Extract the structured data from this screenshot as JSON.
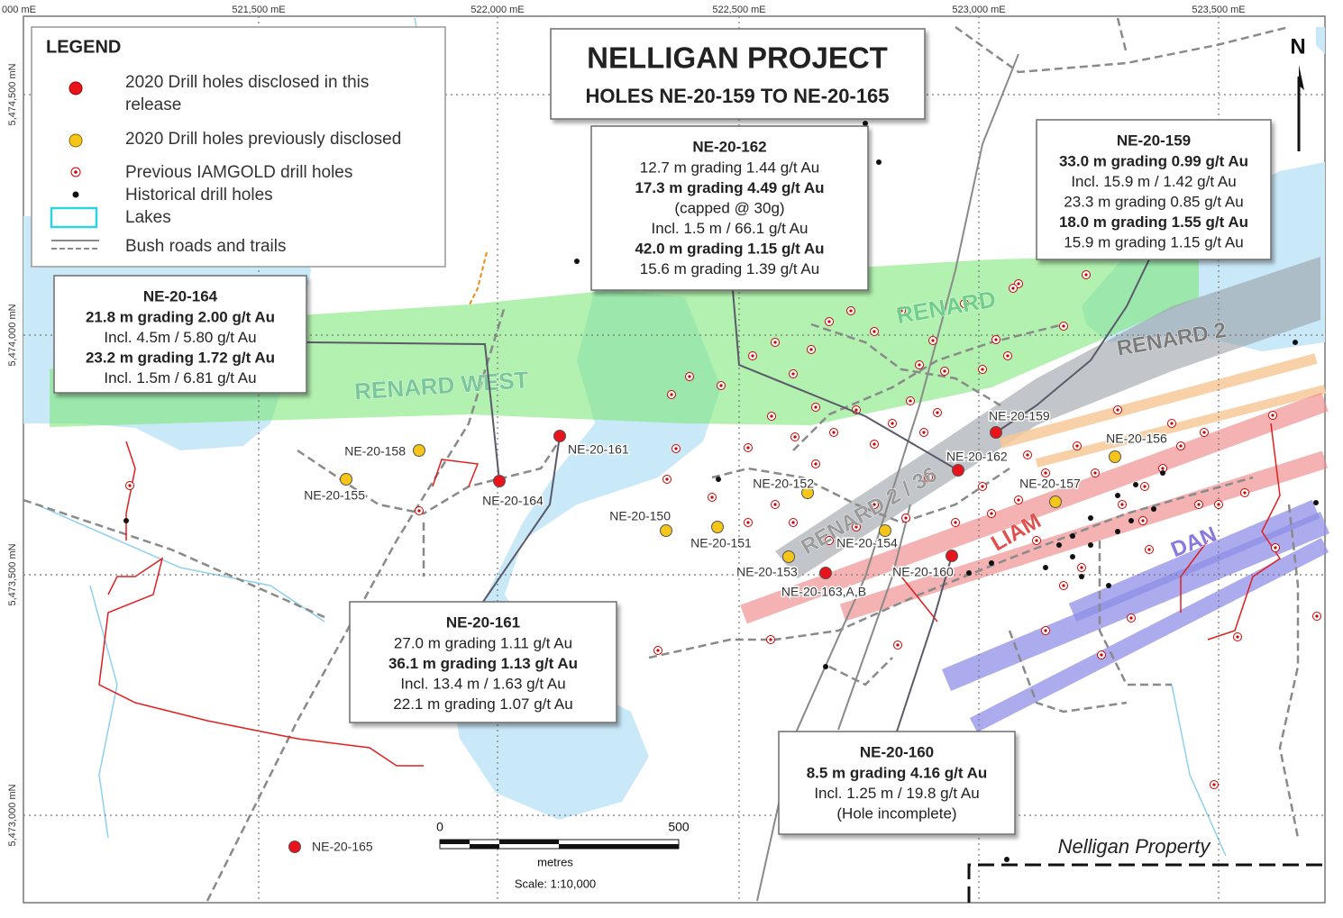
{
  "title": "NELLIGAN PROJECT",
  "subtitle": "HOLES NE-20-159 TO NE-20-165",
  "north": "N",
  "grid_labels": {
    "eastings": [
      "000 mE",
      "521,500 mE",
      "522,000 mE",
      "522,500 mE",
      "523,000 mE",
      "523,500 mE"
    ],
    "northings": [
      "5,474,500 mN",
      "5,474,000 mN",
      "5,473,500 mN",
      "5,473,000 mN"
    ]
  },
  "legend": {
    "title": "LEGEND",
    "items": [
      {
        "lines": [
          "2020 Drill holes disclosed in this",
          "release"
        ],
        "color": "#e8131b"
      },
      {
        "lines": [
          "2020 Drill holes previously disclosed"
        ],
        "color": "#f5c518"
      },
      {
        "lines": [
          "Previous IAMGOLD drill holes"
        ]
      },
      {
        "lines": [
          "Historical drill holes"
        ]
      },
      {
        "lines": [
          "Lakes"
        ]
      },
      {
        "lines": [
          "Bush roads and trails"
        ]
      }
    ]
  },
  "callouts": [
    {
      "title": "NE-20-162",
      "lines": [
        {
          "text": "12.7 m grading 1.44 g/t Au",
          "bold": false
        },
        {
          "text": "17.3 m grading 4.49 g/t Au",
          "bold": true
        },
        {
          "text": "(capped @ 30g)",
          "bold": false
        },
        {
          "text": "Incl. 1.5 m / 66.1 g/t Au",
          "bold": false
        },
        {
          "text": "42.0 m grading 1.15 g/t Au",
          "bold": true
        },
        {
          "text": "15.6 m grading 1.39 g/t Au",
          "bold": false
        }
      ]
    },
    {
      "title": "NE-20-159",
      "lines": [
        {
          "text": "33.0 m grading 0.99 g/t Au",
          "bold": true
        },
        {
          "text": "Incl. 15.9 m / 1.42 g/t Au",
          "bold": false
        },
        {
          "text": "23.3 m grading 0.85 g/t Au",
          "bold": false
        },
        {
          "text": "18.0 m grading 1.55 g/t Au",
          "bold": true
        },
        {
          "text": "15.9 m grading 1.15 g/t Au",
          "bold": false
        }
      ]
    },
    {
      "title": "NE-20-164",
      "lines": [
        {
          "text": "21.8 m grading 2.00 g/t Au",
          "bold": true
        },
        {
          "text": "Incl. 4.5m / 5.80 g/t Au",
          "bold": false
        },
        {
          "text": "23.2 m grading 1.72 g/t Au",
          "bold": true
        },
        {
          "text": "Incl. 1.5m / 6.81 g/t Au",
          "bold": false
        }
      ]
    },
    {
      "title": "NE-20-161",
      "lines": [
        {
          "text": "27.0 m grading 1.11 g/t Au",
          "bold": false
        },
        {
          "text": "36.1 m grading 1.13 g/t Au",
          "bold": true
        },
        {
          "text": "Incl. 13.4 m / 1.63 g/t Au",
          "bold": false
        },
        {
          "text": "22.1 m grading 1.07 g/t Au",
          "bold": false
        }
      ]
    },
    {
      "title": "NE-20-160",
      "lines": [
        {
          "text": "8.5 m grading 4.16 g/t Au",
          "bold": true
        },
        {
          "text": "Incl. 1.25 m / 19.8 g/t Au",
          "bold": false
        },
        {
          "text": "(Hole incomplete)",
          "bold": false
        }
      ]
    }
  ],
  "zones": [
    "RENARD WEST",
    "RENARD",
    "RENARD 2",
    "RENARD 2 / 36",
    "LIAM",
    "DAN"
  ],
  "holes": [
    {
      "label": "NE-20-158",
      "color": "#f5c518"
    },
    {
      "label": "NE-20-155",
      "color": "#f5c518"
    },
    {
      "label": "NE-20-164",
      "color": "#e8131b"
    },
    {
      "label": "NE-20-161",
      "color": "#e8131b"
    },
    {
      "label": "NE-20-150",
      "color": "#f5c518"
    },
    {
      "label": "NE-20-151",
      "color": "#f5c518"
    },
    {
      "label": "NE-20-152",
      "color": "#f5c518"
    },
    {
      "label": "NE-20-153",
      "color": "#f5c518"
    },
    {
      "label": "NE-20-163,A,B",
      "color": "#e8131b"
    },
    {
      "label": "NE-20-154",
      "color": "#f5c518"
    },
    {
      "label": "NE-20-160",
      "color": "#e8131b"
    },
    {
      "label": "NE-20-162",
      "color": "#e8131b"
    },
    {
      "label": "NE-20-159",
      "color": "#e8131b"
    },
    {
      "label": "NE-20-157",
      "color": "#f5c518"
    },
    {
      "label": "NE-20-156",
      "color": "#f5c518"
    },
    {
      "label": "NE-20-165",
      "color": "#e8131b"
    }
  ],
  "scale_bar": {
    "start": "0",
    "end": "500",
    "unit": "metres",
    "scale": "Scale: 1:10,000"
  },
  "property_label": "Nelligan Property"
}
